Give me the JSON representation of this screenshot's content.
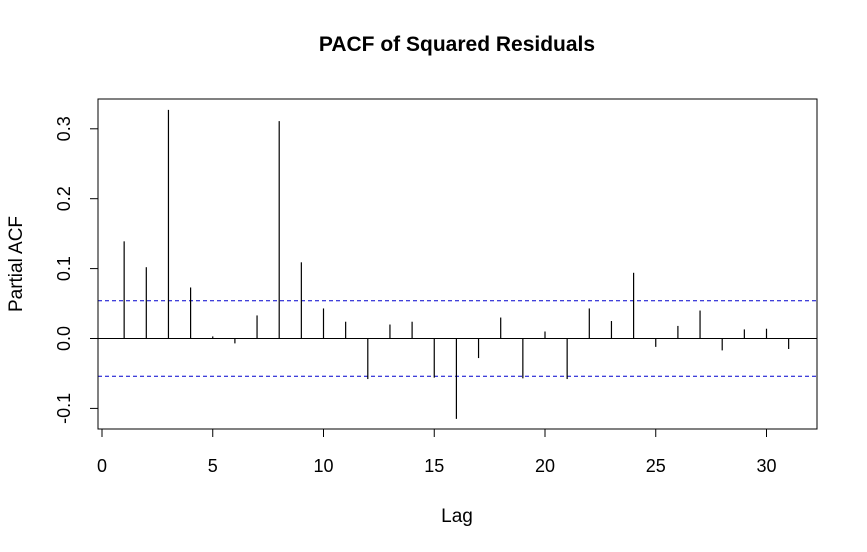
{
  "chart_data": {
    "type": "bar",
    "title": "PACF of Squared Residuals",
    "xlabel": "Lag",
    "ylabel": "Partial ACF",
    "xlim": [
      0,
      32
    ],
    "ylim": [
      -0.13,
      0.34
    ],
    "x_ticks": [
      "0",
      "5",
      "10",
      "15",
      "20",
      "25",
      "30"
    ],
    "y_ticks": [
      "-0.1",
      "0.0",
      "0.1",
      "0.2",
      "0.3"
    ],
    "confidence_bound": 0.054,
    "lags": [
      1,
      2,
      3,
      4,
      5,
      6,
      7,
      8,
      9,
      10,
      11,
      12,
      13,
      14,
      15,
      16,
      17,
      18,
      19,
      20,
      21,
      22,
      23,
      24,
      25,
      26,
      27,
      28,
      29,
      30,
      31
    ],
    "values": [
      0.139,
      0.102,
      0.327,
      0.073,
      0.003,
      -0.007,
      0.033,
      0.311,
      0.109,
      0.043,
      0.024,
      -0.058,
      0.02,
      0.024,
      -0.056,
      -0.115,
      -0.028,
      0.03,
      -0.057,
      0.01,
      -0.058,
      0.043,
      0.025,
      0.094,
      -0.012,
      0.018,
      0.04,
      -0.017,
      0.013,
      0.014,
      -0.015
    ],
    "grid": false,
    "colors": {
      "bars": "#000000",
      "bounds": "#0000CD",
      "axes": "#000000"
    }
  }
}
